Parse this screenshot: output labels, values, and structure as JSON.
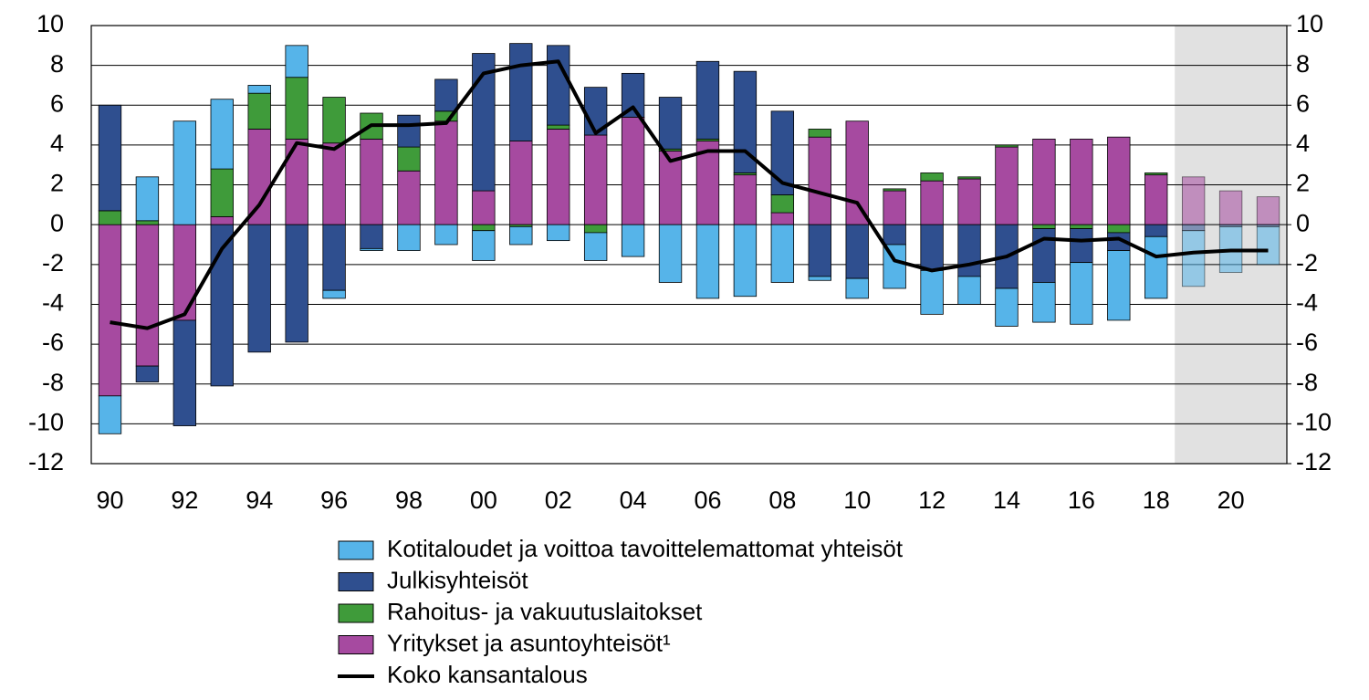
{
  "chart_data": {
    "type": "bar",
    "stacked": true,
    "categories": [
      "90",
      null,
      "92",
      null,
      "94",
      null,
      "96",
      null,
      "98",
      null,
      "00",
      null,
      "02",
      null,
      "04",
      null,
      "06",
      null,
      "08",
      null,
      "10",
      null,
      "12",
      null,
      "14",
      null,
      "16",
      null,
      "18",
      null,
      "20",
      null
    ],
    "series": [
      {
        "name": "Kotitaloudet ja voittoa tavoittelemattomat yhteisöt",
        "color": "#56b4e9",
        "values": [
          -1.9,
          2.2,
          5.2,
          3.5,
          0.4,
          1.6,
          -0.4,
          -0.1,
          -1.3,
          -1.0,
          -1.5,
          -0.9,
          -0.8,
          -1.4,
          -1.6,
          -2.9,
          -3.7,
          -3.6,
          -2.9,
          -0.2,
          -1.0,
          -2.2,
          -2.2,
          -1.4,
          -1.9,
          -2.0,
          -3.1,
          -3.5,
          -3.1,
          -2.8,
          -2.3,
          -1.9
        ]
      },
      {
        "name": "Julkisyhteisöt",
        "color": "#2f4f8f",
        "values": [
          5.3,
          -0.8,
          -5.3,
          -8.1,
          -6.4,
          -5.9,
          -3.3,
          -1.2,
          1.6,
          1.6,
          6.9,
          4.9,
          4.0,
          2.4,
          2.2,
          2.6,
          3.9,
          5.1,
          4.2,
          -2.6,
          -2.7,
          -1.0,
          -2.3,
          -2.6,
          -3.2,
          -2.7,
          -1.7,
          -0.9,
          -0.6,
          -0.3,
          -0.1,
          -0.1
        ]
      },
      {
        "name": "Rahoitus- ja vakuutuslaitokset",
        "color": "#3f9b3a",
        "values": [
          0.7,
          0.2,
          0,
          2.4,
          1.8,
          3.1,
          2.3,
          1.3,
          1.2,
          0.5,
          -0.3,
          -0.1,
          0.2,
          -0.4,
          0,
          0.1,
          0.1,
          0.1,
          0.9,
          0.4,
          0,
          0.1,
          0.4,
          0.1,
          0.1,
          -0.2,
          -0.2,
          -0.4,
          0.1,
          0,
          0,
          0
        ]
      },
      {
        "name": "Yritykset ja asuntoyhteisöt¹",
        "color": "#a64aa0",
        "values": [
          -8.6,
          -7.1,
          -4.8,
          0.4,
          4.8,
          4.3,
          4.1,
          4.3,
          2.7,
          5.2,
          1.7,
          4.2,
          4.8,
          4.5,
          5.4,
          3.7,
          4.2,
          2.5,
          0.6,
          4.4,
          5.2,
          1.7,
          2.2,
          2.3,
          3.9,
          4.3,
          4.3,
          4.4,
          2.5,
          2.4,
          1.7,
          1.4
        ]
      },
      {
        "name": "Koko kansantalous",
        "color": "#000000",
        "type": "line",
        "values": [
          -4.9,
          -5.2,
          -4.5,
          -1.2,
          1.0,
          4.1,
          3.8,
          5.0,
          5.0,
          5.1,
          7.6,
          8.0,
          8.2,
          4.6,
          5.9,
          3.2,
          3.7,
          3.7,
          2.1,
          1.6,
          1.1,
          -1.8,
          -2.3,
          -2.0,
          -1.6,
          -0.7,
          -0.8,
          -0.7,
          -1.6,
          -1.4,
          -1.3,
          -1.3
        ]
      }
    ],
    "ylim": [
      -12,
      10
    ],
    "yticks": [
      -12,
      -10,
      -8,
      -6,
      -4,
      -2,
      0,
      2,
      4,
      6,
      8,
      10
    ],
    "y2lim": [
      -12,
      10
    ],
    "y2ticks": [
      -12,
      -10,
      -8,
      -6,
      -4,
      -2,
      0,
      2,
      4,
      6,
      8,
      10
    ],
    "grid": true,
    "shaded_from_category": 29,
    "legend": "bottom"
  }
}
